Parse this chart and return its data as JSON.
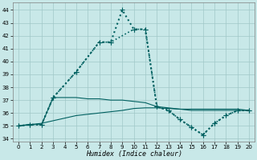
{
  "background_color": "#c8e8e8",
  "grid_color": "#a0c8c8",
  "line_color": "#006060",
  "xlabel": "Humidex (Indice chaleur)",
  "ylim": [
    33.8,
    44.6
  ],
  "xlim": [
    -0.5,
    20.5
  ],
  "yticks": [
    34,
    35,
    36,
    37,
    38,
    39,
    40,
    41,
    42,
    43,
    44
  ],
  "xticks": [
    0,
    1,
    2,
    3,
    4,
    5,
    6,
    7,
    8,
    9,
    10,
    11,
    12,
    13,
    14,
    15,
    16,
    17,
    18,
    19,
    20
  ],
  "series": [
    {
      "x": [
        0,
        1,
        2,
        3,
        4,
        5,
        6,
        7,
        8,
        9,
        10,
        11,
        12,
        13,
        14,
        15,
        16,
        17,
        18,
        19,
        20
      ],
      "y": [
        35.0,
        35.1,
        35.1,
        37.2,
        37.2,
        37.2,
        37.1,
        37.1,
        37.0,
        37.0,
        36.9,
        36.8,
        36.5,
        36.4,
        36.3,
        36.2,
        36.2,
        36.2,
        36.2,
        36.2,
        36.2
      ],
      "style": "-",
      "lw": 0.8,
      "marker": null
    },
    {
      "x": [
        0,
        1,
        2,
        3,
        4,
        5,
        6,
        7,
        8,
        9,
        10,
        11,
        12,
        13,
        14,
        15,
        16,
        17,
        18,
        19,
        20
      ],
      "y": [
        35.0,
        35.1,
        35.2,
        35.4,
        35.6,
        35.8,
        35.9,
        36.0,
        36.1,
        36.2,
        36.35,
        36.4,
        36.4,
        36.35,
        36.3,
        36.3,
        36.3,
        36.3,
        36.3,
        36.3,
        36.2
      ],
      "style": "-",
      "lw": 0.8,
      "marker": null
    },
    {
      "x": [
        0,
        1,
        2,
        3,
        5,
        7,
        8,
        10,
        11,
        12,
        13,
        14,
        15,
        16,
        17,
        18,
        19,
        20
      ],
      "y": [
        35.0,
        35.1,
        35.1,
        37.2,
        39.2,
        41.5,
        41.5,
        42.5,
        42.5,
        36.5,
        36.2,
        35.5,
        34.9,
        34.3,
        35.2,
        35.8,
        36.2,
        36.2
      ],
      "style": ":",
      "lw": 1.2,
      "marker": "+",
      "ms": 4
    },
    {
      "x": [
        0,
        1,
        2,
        3,
        5,
        7,
        8,
        9,
        10,
        11,
        12,
        13,
        14,
        15,
        16,
        17,
        18,
        19,
        20
      ],
      "y": [
        35.0,
        35.1,
        35.1,
        37.2,
        39.2,
        41.5,
        41.5,
        44.0,
        42.5,
        42.5,
        36.5,
        36.2,
        35.5,
        34.9,
        34.3,
        35.2,
        35.8,
        36.2,
        36.2
      ],
      "style": ":",
      "lw": 1.5,
      "marker": "+",
      "ms": 4
    }
  ]
}
